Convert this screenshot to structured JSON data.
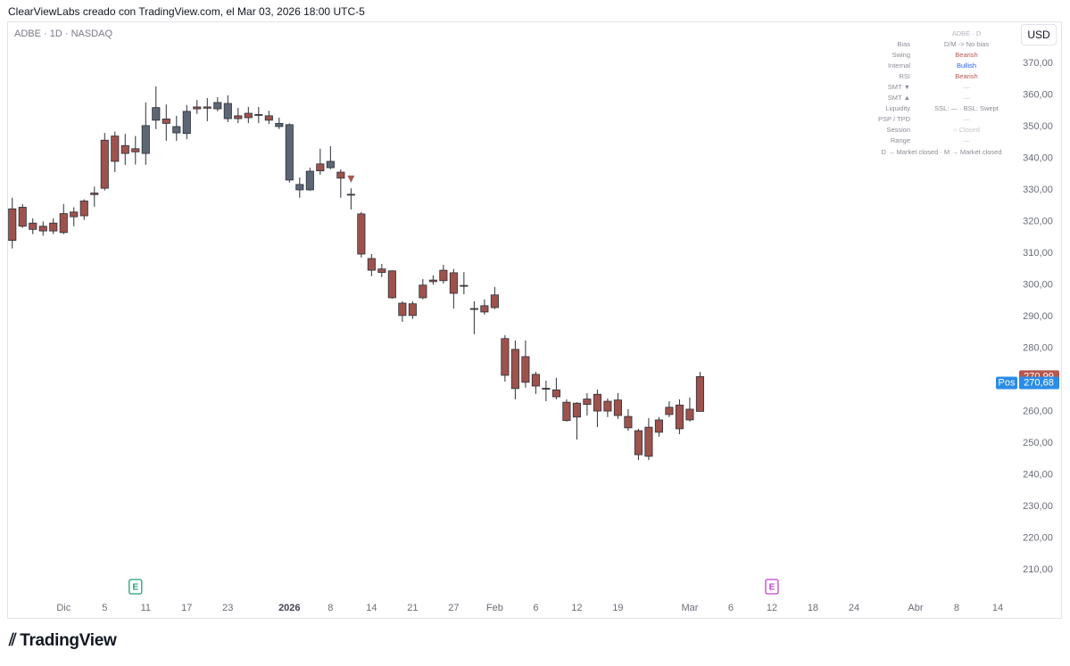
{
  "header": {
    "caption": "ClearViewLabs creado con TradingView.com, el Mar 03, 2026 18:00 UTC-5",
    "brand": "TradingView"
  },
  "chart_data": {
    "type": "candlestick",
    "title": "ADBE · 1D · NASDAQ",
    "currency": "USD",
    "x": [
      0,
      1,
      2,
      3,
      4,
      5,
      6,
      7,
      8,
      9,
      10,
      11,
      12,
      13,
      14,
      15,
      16,
      17,
      18,
      19,
      20,
      21,
      22,
      23,
      24,
      25,
      26,
      27,
      28,
      29,
      30,
      31,
      32,
      33,
      34,
      35,
      36,
      37,
      38,
      39,
      40,
      41,
      42,
      43,
      44,
      45,
      46,
      47,
      48,
      49,
      50,
      51,
      52,
      53,
      54,
      55,
      56,
      57,
      58,
      59,
      60,
      61,
      62,
      63,
      64,
      65,
      66,
      67
    ],
    "open": [
      324,
      324.5,
      319.5,
      318.5,
      317,
      316.5,
      321.5,
      321.8,
      328.5,
      330.5,
      347,
      341.5,
      343,
      341.5,
      352,
      351,
      348,
      347.8,
      355.6,
      355.8,
      355.6,
      357.3,
      352.5,
      352.8,
      353.6,
      353.4,
      351,
      350.6,
      330,
      330,
      336,
      337,
      335.6,
      328.6,
      322.4,
      308.3,
      305,
      304.4,
      294.2,
      294,
      295.9,
      301,
      301.3,
      303.8,
      299.8,
      292.5,
      291.4,
      292.8,
      283,
      279.6,
      277.3,
      271.7,
      267.3,
      266.8,
      262.9,
      262.6,
      262.2,
      265.4,
      263.2,
      263.6,
      258.4,
      253.9,
      255,
      253.4,
      259,
      262,
      257.3,
      260
    ],
    "high": [
      327.5,
      325.5,
      321,
      320,
      321,
      325.5,
      324.5,
      327,
      331,
      348,
      348.4,
      347.7,
      347,
      357.6,
      362.7,
      357,
      353.4,
      356.8,
      358.4,
      359,
      359.3,
      359.9,
      355.9,
      356.2,
      356.2,
      355,
      352.8,
      351,
      333.9,
      337,
      343,
      343.8,
      336.5,
      330.5,
      323,
      309.7,
      306.6,
      304.6,
      294.8,
      294.8,
      301.8,
      303,
      306.3,
      305,
      304,
      294.8,
      295.4,
      299.3,
      284.1,
      282.4,
      282.4,
      272.5,
      269.7,
      270.6,
      263.8,
      262.9,
      265.8,
      266.9,
      264.1,
      265.8,
      260.7,
      254.5,
      257.9,
      258.2,
      263.2,
      263.8,
      264.4,
      272.5
    ],
    "low": [
      311.5,
      318,
      316,
      315.5,
      316,
      316,
      318.5,
      320.5,
      324.7,
      329.8,
      335.6,
      337.9,
      338,
      337.9,
      349.2,
      345.5,
      345.5,
      346,
      354,
      351.7,
      354.8,
      351.4,
      351.1,
      351.1,
      351.1,
      350.8,
      349.2,
      332.3,
      327.5,
      329.7,
      334.8,
      336.5,
      327.5,
      323.8,
      308.6,
      302.7,
      302.4,
      295.6,
      288.3,
      289.2,
      295.4,
      300,
      300.4,
      292.5,
      297,
      284.4,
      290.6,
      292.3,
      269.4,
      263.8,
      267.5,
      265.5,
      263.2,
      263.8,
      256.8,
      251.1,
      258.7,
      255,
      258.2,
      257.6,
      253.9,
      244.6,
      244.6,
      252,
      258.2,
      252.8,
      256.8,
      259.9
    ],
    "close": [
      314,
      318.5,
      317.5,
      317,
      319.5,
      322.5,
      323,
      326.5,
      329,
      345.7,
      339,
      344,
      342,
      350.3,
      356,
      352.4,
      350,
      354.8,
      356.2,
      356.2,
      357.6,
      352.5,
      353.4,
      354.2,
      353.8,
      352,
      350,
      333.1,
      331.7,
      335.9,
      338.2,
      339,
      333.7,
      328.5,
      309.7,
      304.6,
      303.9,
      295.9,
      290.3,
      290.3,
      299.9,
      301.5,
      304.6,
      297.3,
      299.8,
      292.5,
      293.4,
      296.8,
      271.4,
      267.2,
      269.2,
      268,
      267.1,
      264.6,
      257.1,
      258.2,
      263.9,
      260.1,
      260.1,
      258.7,
      254.8,
      246.3,
      245.8,
      257.3,
      261.3,
      254.5,
      260.7,
      270.99
    ],
    "colors": [
      "#9e524c",
      "#9e524c",
      "#9e524c",
      "#9e524c",
      "#9e524c",
      "#9e524c",
      "#9e524c",
      "#9e524c",
      "#9e524c",
      "#9e524c",
      "#9e524c",
      "#9e524c",
      "#9e524c",
      "#5d6675",
      "#5d6675",
      "#9e524c",
      "#5d6675",
      "#5d6675",
      "#9e524c",
      "#9e524c",
      "#5d6675",
      "#5d6675",
      "#9e524c",
      "#9e524c",
      "#9e524c",
      "#9e524c",
      "#5d6675",
      "#5d6675",
      "#5d6675",
      "#5d6675",
      "#9e524c",
      "#5d6675",
      "#9e524c",
      "#9e524c",
      "#9e524c",
      "#9e524c",
      "#9e524c",
      "#9e524c",
      "#9e524c",
      "#9e524c",
      "#9e524c",
      "#9e524c",
      "#9e524c",
      "#9e524c",
      "#9e524c",
      "#9e524c",
      "#9e524c",
      "#9e524c",
      "#9e524c",
      "#9e524c",
      "#9e524c",
      "#9e524c",
      "#9e524c",
      "#9e524c",
      "#9e524c",
      "#9e524c",
      "#9e524c",
      "#9e524c",
      "#9e524c",
      "#9e524c",
      "#9e524c",
      "#9e524c",
      "#9e524c",
      "#9e524c",
      "#9e524c",
      "#9e524c",
      "#9e524c",
      "#9e524c"
    ],
    "xlim": [
      -0.5,
      98
    ],
    "xticks": [
      {
        "value": 5,
        "label": "Dic"
      },
      {
        "value": 9,
        "label": "5"
      },
      {
        "value": 13,
        "label": "11"
      },
      {
        "value": 17,
        "label": "17"
      },
      {
        "value": 21,
        "label": "23"
      },
      {
        "value": 27,
        "label": "2026"
      },
      {
        "value": 31,
        "label": "8"
      },
      {
        "value": 35,
        "label": "14"
      },
      {
        "value": 39,
        "label": "21"
      },
      {
        "value": 43,
        "label": "27"
      },
      {
        "value": 47,
        "label": "Feb"
      },
      {
        "value": 51,
        "label": "6"
      },
      {
        "value": 55,
        "label": "12"
      },
      {
        "value": 59,
        "label": "19"
      },
      {
        "value": 66,
        "label": "Mar"
      },
      {
        "value": 70,
        "label": "6"
      },
      {
        "value": 74,
        "label": "12"
      },
      {
        "value": 78,
        "label": "18"
      },
      {
        "value": 82,
        "label": "24"
      },
      {
        "value": 88,
        "label": "Abr"
      },
      {
        "value": 92,
        "label": "8"
      },
      {
        "value": 96,
        "label": "14"
      }
    ],
    "ylim": [
      201.8,
      382.1
    ],
    "yticks": [
      {
        "value": 210,
        "label": "210,00"
      },
      {
        "value": 220,
        "label": "220,00"
      },
      {
        "value": 230,
        "label": "230,00"
      },
      {
        "value": 240,
        "label": "240,00"
      },
      {
        "value": 250,
        "label": "250,00"
      },
      {
        "value": 260,
        "label": "260,00"
      },
      {
        "value": 270,
        "label": "270,00"
      },
      {
        "value": 280,
        "label": "280,00"
      },
      {
        "value": 290,
        "label": "290,00"
      },
      {
        "value": 300,
        "label": "300,00"
      },
      {
        "value": 310,
        "label": "310,00"
      },
      {
        "value": 320,
        "label": "320,00"
      },
      {
        "value": 330,
        "label": "330,00"
      },
      {
        "value": 340,
        "label": "340,00"
      },
      {
        "value": 350,
        "label": "350,00"
      },
      {
        "value": 360,
        "label": "360,00"
      },
      {
        "value": 370,
        "label": "370,00"
      }
    ],
    "grid": false,
    "last_price": {
      "value": 270.99,
      "label": "270,99",
      "color": "#b5574f"
    },
    "position": {
      "name": "Pos",
      "value": 270.68,
      "label": "270,68",
      "color": "#2b8ce6"
    },
    "markers": [
      {
        "x": 33,
        "value": 333.4,
        "color": "#a8584f"
      }
    ],
    "earnings": [
      {
        "x": 12,
        "label": "E",
        "color": "#22a07a"
      },
      {
        "x": 74,
        "label": "E",
        "color": "#c043c9"
      }
    ]
  },
  "info_table": {
    "header": "ADBE · D",
    "rows": [
      [
        "Bias",
        "D/M ->  No bias"
      ],
      [
        "Swing",
        "Bearish"
      ],
      [
        "Internal",
        "Bullish"
      ],
      [
        "RSI",
        "Bearish"
      ],
      [
        "SMT ▼",
        "—"
      ],
      [
        "SMT ▲",
        "—"
      ],
      [
        "Liquidity",
        "SSL: — · BSL: Swept"
      ],
      [
        "PSP / TPD",
        "—"
      ],
      [
        "Session",
        "○ Closed"
      ],
      [
        "Range",
        "—"
      ]
    ],
    "footer": "D → Market closed  ·  M → Market closed"
  }
}
